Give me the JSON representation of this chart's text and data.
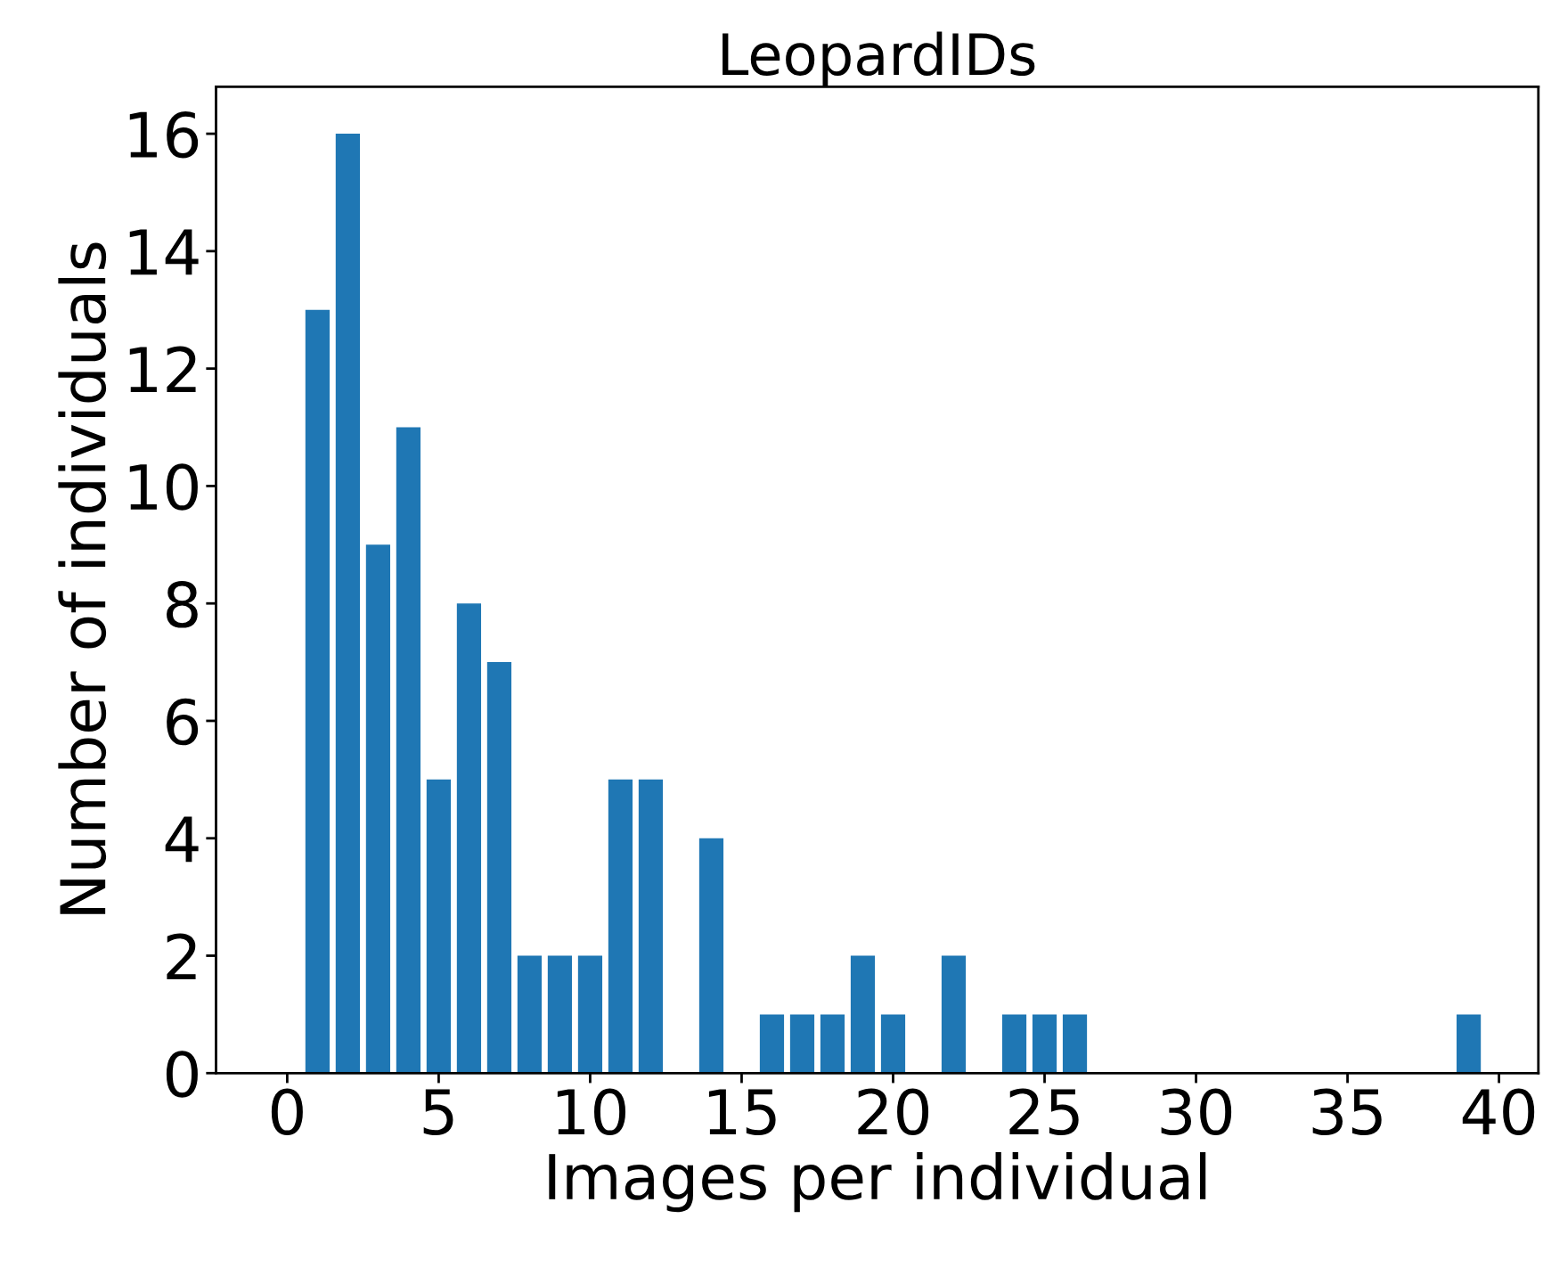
{
  "chart_data": {
    "type": "bar",
    "title": "LeopardIDs",
    "xlabel": "Images per individual",
    "ylabel": "Number of individuals",
    "x": [
      1,
      2,
      3,
      4,
      5,
      6,
      7,
      8,
      9,
      10,
      11,
      12,
      14,
      16,
      17,
      18,
      19,
      20,
      22,
      24,
      25,
      26,
      39
    ],
    "values": [
      13,
      16,
      9,
      11,
      5,
      8,
      7,
      2,
      2,
      2,
      5,
      5,
      4,
      1,
      1,
      1,
      2,
      1,
      2,
      1,
      1,
      1,
      1
    ],
    "color": "#1f77b4",
    "xlim": [
      -2.35,
      41.3
    ],
    "xticks": [
      0,
      5,
      10,
      15,
      20,
      25,
      30,
      35,
      40
    ],
    "ylim": [
      0,
      16.8
    ],
    "yticks": [
      0,
      2,
      4,
      6,
      8,
      10,
      12,
      14,
      16
    ],
    "grid": false,
    "legend": false
  }
}
